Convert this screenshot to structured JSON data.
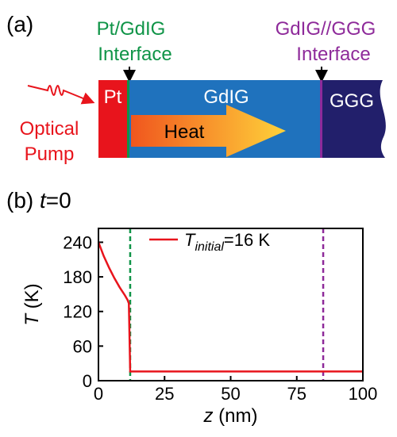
{
  "panel_a": {
    "label": "(a)",
    "pt_interface": [
      "Pt/GdIG",
      "Interface"
    ],
    "ggg_interface": [
      "GdIG//GGG",
      "Interface"
    ],
    "layers": [
      "Pt",
      "GdIG",
      "GGG"
    ],
    "heat": "Heat",
    "pump": [
      "Optical",
      "Pump"
    ]
  },
  "panel_b": {
    "label": "(b)",
    "title_var": "t",
    "title_rest": "=0"
  },
  "chart_data": {
    "type": "line",
    "x": [
      0,
      2,
      4,
      6,
      8,
      10,
      11,
      11.5,
      12,
      100
    ],
    "series": [
      {
        "name": {
          "symbol": "T",
          "subscript": "initial",
          "rest": "=16 K"
        },
        "color": "#e8141c",
        "values": [
          240,
          216,
          196,
          178,
          162,
          148,
          140,
          134,
          16,
          16
        ]
      }
    ],
    "xlim": [
      0,
      100
    ],
    "ylim": [
      0,
      264
    ],
    "xticks": [
      0,
      25,
      50,
      75,
      100
    ],
    "yticks": [
      0,
      60,
      120,
      180,
      240
    ],
    "xlabel": {
      "var": "z",
      "rest": " (nm)"
    },
    "ylabel": {
      "var": "T",
      "rest": " (K)"
    },
    "vlines": [
      {
        "x": 12,
        "color": "#0f9447"
      },
      {
        "x": 85,
        "color": "#8e2a9a"
      }
    ],
    "legend": "upper center"
  }
}
